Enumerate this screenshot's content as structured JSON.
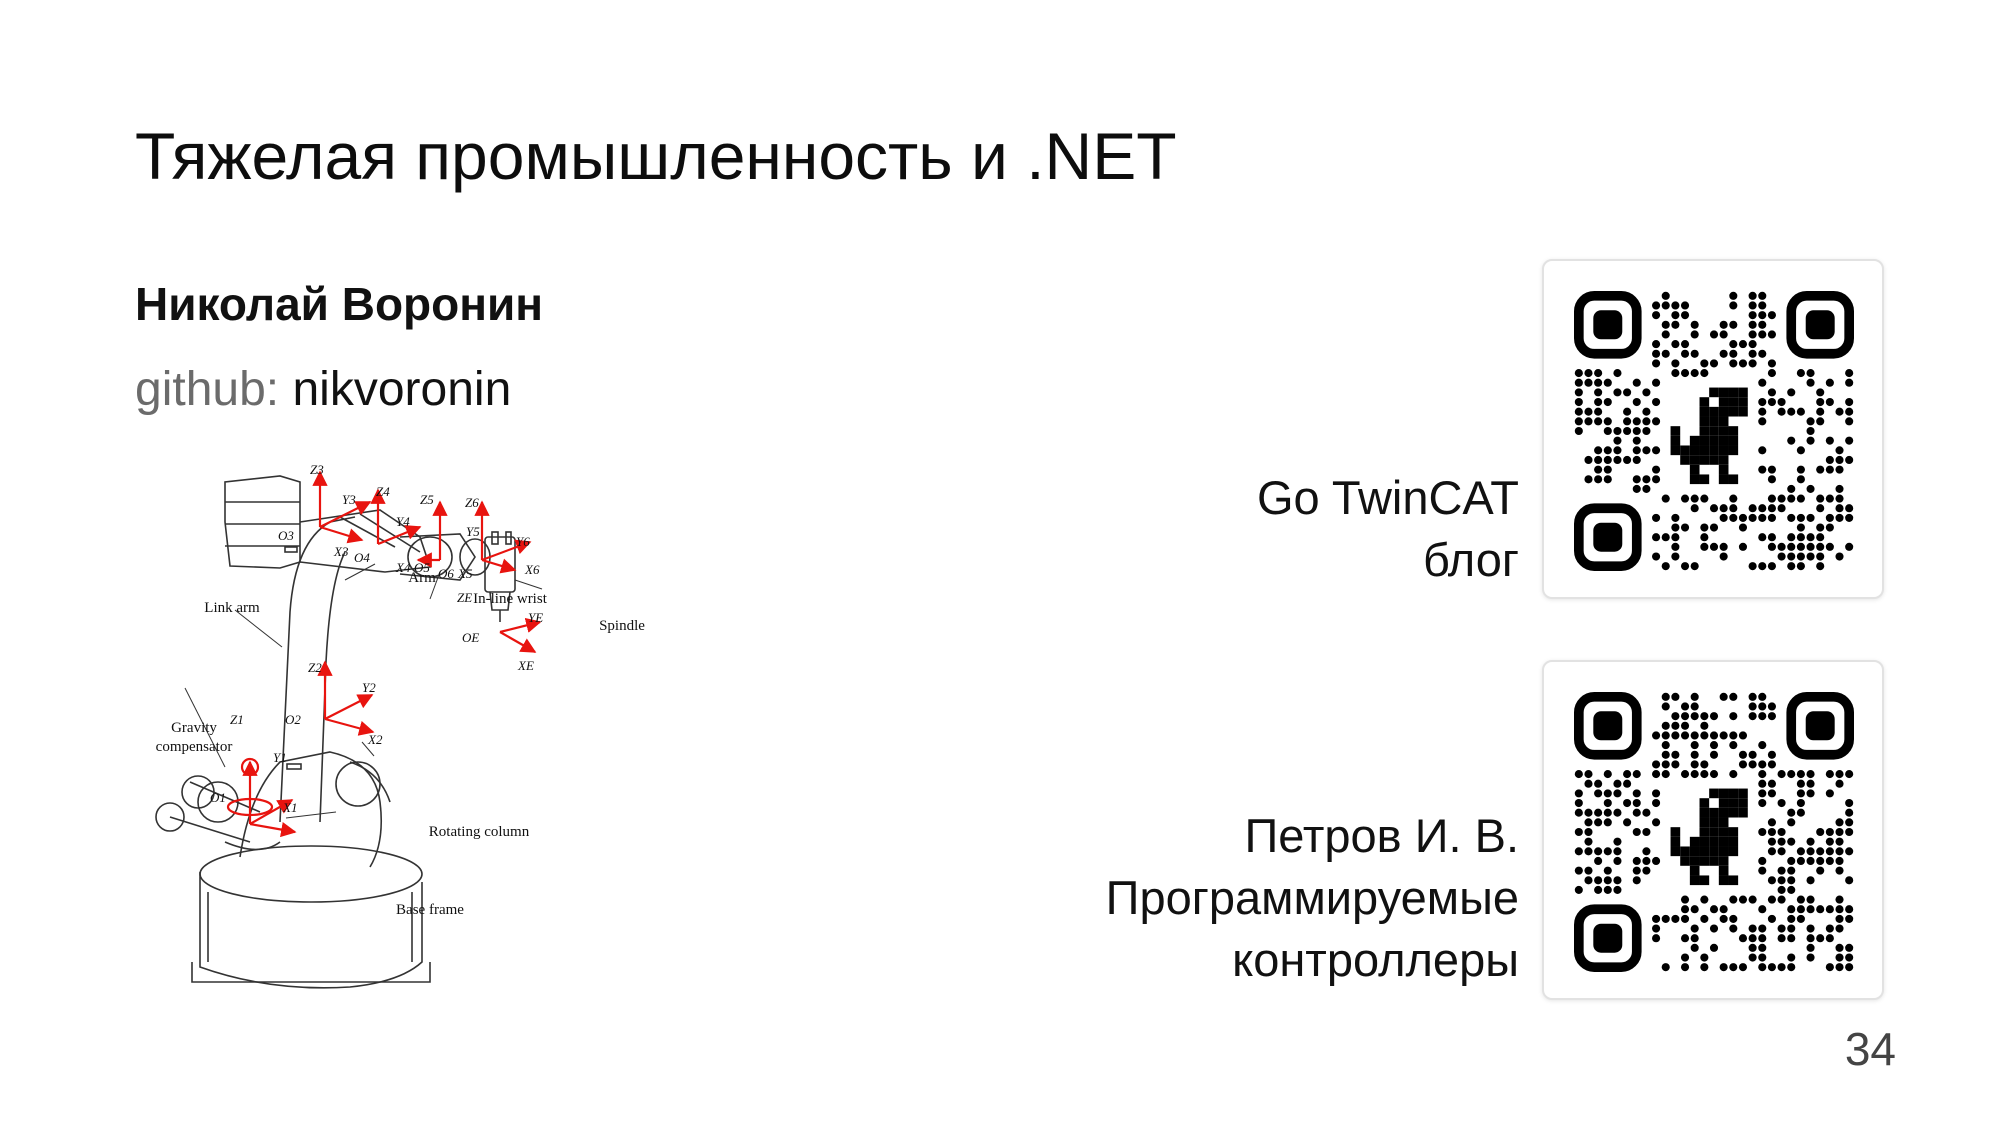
{
  "slide": {
    "title": "Тяжелая промышленность и .NET",
    "author": "Николай Воронин",
    "github_key": "github:",
    "github_value": "nikvoronin",
    "page_number": "34"
  },
  "diagram": {
    "labels": {
      "link_arm": "Link arm",
      "gravity": "Gravity",
      "compensator": "compensator",
      "arm": "Arm",
      "inline_wrist": "In-line wrist",
      "spindle": "Spindle",
      "rotating_column": "Rotating column",
      "base_frame": "Base frame"
    },
    "frames": {
      "z3": "Z3",
      "y3": "Y3",
      "z4": "Z4",
      "z5": "Z5",
      "z6": "Z6",
      "y4": "Y4",
      "y5": "Y5",
      "y6": "Y6",
      "o3": "O3",
      "x3": "X3",
      "o4": "O4",
      "x4": "X4",
      "o5": "O5",
      "o6": "O6",
      "x5": "X5",
      "x6": "X6",
      "ze": "ZE",
      "ye": "YE",
      "oe": "OE",
      "xe": "XE",
      "z2": "Z2",
      "y2": "Y2",
      "o2": "O2",
      "x2": "X2",
      "z1": "Z1",
      "y1": "Y1",
      "o1": "O1",
      "x1": "X1"
    },
    "accent_color": "#e8140f"
  },
  "qr_codes": [
    {
      "line1": "Go TwinCAT",
      "line2": "блог"
    },
    {
      "line1": "Петров И. В.",
      "line2": "Программируемые",
      "line3": "контроллеры"
    }
  ]
}
